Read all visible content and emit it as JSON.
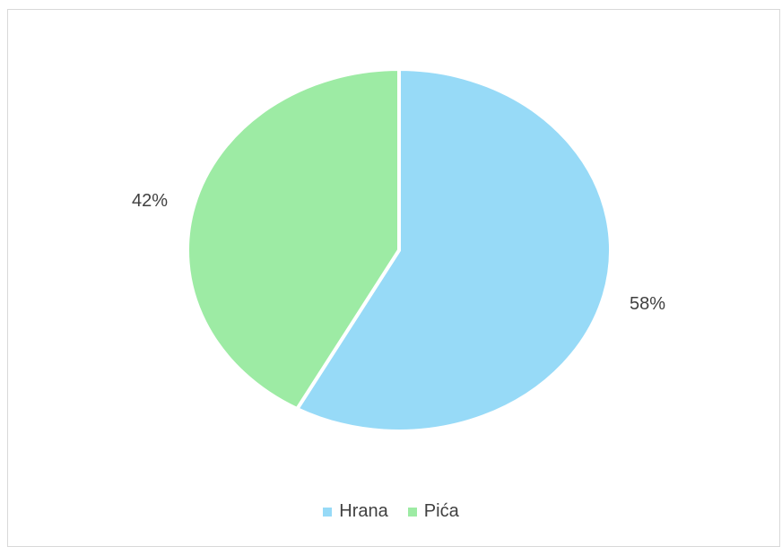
{
  "chart_data": {
    "type": "pie",
    "categories": [
      "Hrana",
      "Pića"
    ],
    "values": [
      58,
      42
    ],
    "labels": [
      "58%",
      "42%"
    ],
    "colors": [
      "#97DAF7",
      "#9DEBA4"
    ],
    "legend_position": "bottom"
  }
}
